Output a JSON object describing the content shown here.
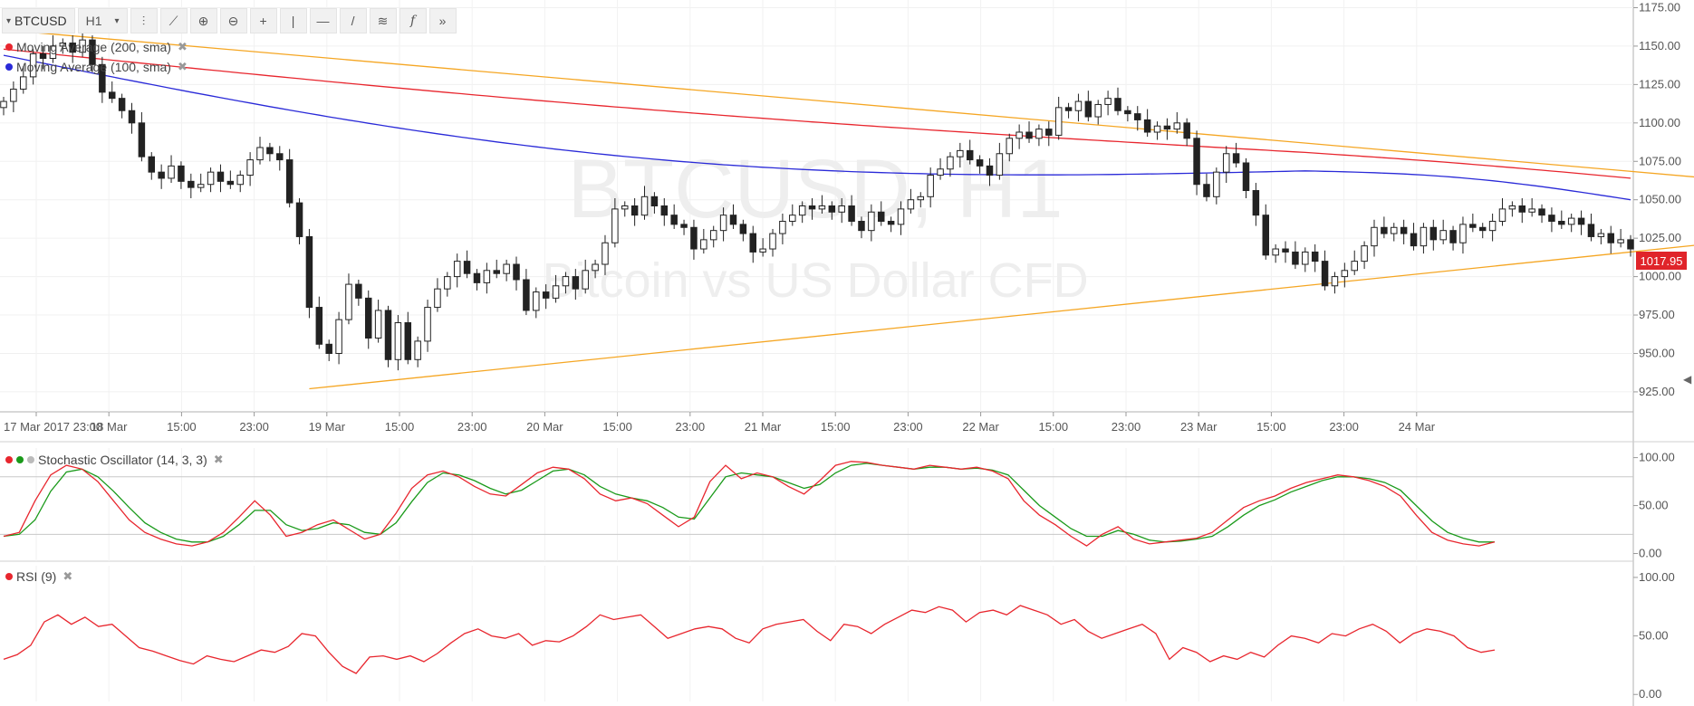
{
  "toolbar": {
    "symbol": "BTCUSD",
    "interval": "H1",
    "icons": [
      "bar-style-icon",
      "indicators-icon",
      "zoom-in-icon",
      "zoom-out-icon",
      "crosshair-icon",
      "vertical-line-icon",
      "horizontal-line-icon",
      "trend-line-icon",
      "fib-tool-icon",
      "function-icon",
      "more-icon"
    ]
  },
  "watermark": {
    "line1": "BTCUSD, H1",
    "line2": "Bitcoin vs US Dollar CFD"
  },
  "colors": {
    "ma200": "#e8262e",
    "ma100": "#2a2ad8",
    "trend": "#f5a623",
    "k": "#e8262e",
    "d": "#1a9a1a",
    "rsi": "#e8262e",
    "badge": "#e0242a"
  },
  "chart_data": [
    {
      "type": "candlestick",
      "ylim": [
        912,
        1180
      ],
      "y_ticks": [
        "1175.00",
        "1150.00",
        "1125.00",
        "1100.00",
        "1075.00",
        "1050.00",
        "1025.00",
        "1000.00",
        "975.00",
        "950.00",
        "925.00"
      ],
      "x_tick_labels": [
        "17 Mar 2017 23:00",
        "18 Mar",
        "15:00",
        "23:00",
        "19 Mar",
        "15:00",
        "23:00",
        "20 Mar",
        "15:00",
        "23:00",
        "21 Mar",
        "15:00",
        "23:00",
        "22 Mar",
        "15:00",
        "23:00",
        "23 Mar",
        "15:00",
        "23:00",
        "24 Mar"
      ],
      "last_price": "1017.95",
      "close": [
        1114,
        1122,
        1130,
        1145,
        1142,
        1150,
        1152,
        1146,
        1154,
        1138,
        1120,
        1116,
        1108,
        1100,
        1078,
        1068,
        1064,
        1072,
        1062,
        1058,
        1060,
        1068,
        1062,
        1060,
        1066,
        1076,
        1084,
        1080,
        1076,
        1048,
        1026,
        980,
        956,
        950,
        972,
        995,
        986,
        960,
        978,
        946,
        970,
        946,
        958,
        980,
        992,
        1000,
        1010,
        1002,
        996,
        1004,
        1002,
        1008,
        998,
        978,
        990,
        986,
        994,
        1000,
        992,
        1004,
        1008,
        1022,
        1044,
        1046,
        1040,
        1052,
        1046,
        1040,
        1034,
        1032,
        1018,
        1024,
        1030,
        1040,
        1034,
        1028,
        1016,
        1018,
        1028,
        1036,
        1040,
        1046,
        1044,
        1046,
        1042,
        1046,
        1036,
        1030,
        1042,
        1036,
        1034,
        1044,
        1050,
        1052,
        1066,
        1070,
        1078,
        1082,
        1076,
        1072,
        1066,
        1080,
        1090,
        1094,
        1090,
        1096,
        1092,
        1110,
        1108,
        1114,
        1104,
        1112,
        1116,
        1108,
        1106,
        1102,
        1094,
        1098,
        1096,
        1100,
        1090,
        1060,
        1052,
        1068,
        1080,
        1074,
        1056,
        1040,
        1014,
        1018,
        1016,
        1008,
        1016,
        1010,
        994,
        1000,
        1004,
        1010,
        1020,
        1032,
        1028,
        1032,
        1028,
        1020,
        1032,
        1024,
        1030,
        1022,
        1034,
        1032,
        1030,
        1036,
        1044,
        1046,
        1042,
        1044,
        1040,
        1036,
        1034,
        1038,
        1034,
        1026,
        1028,
        1022,
        1024,
        1018
      ],
      "ma200": {
        "start": 1148,
        "end": 1064,
        "label": "Moving Average (200, sma)"
      },
      "ma100": {
        "start": 1144,
        "end": 1050,
        "label": "Moving Average (100, sma)"
      },
      "trendlines": [
        {
          "from": [
            1,
            1160
          ],
          "to": [
            179,
            1067
          ]
        },
        {
          "from": [
            31,
            927
          ],
          "to": [
            179,
            1018
          ]
        }
      ]
    },
    {
      "type": "line",
      "label": "Stochastic Oscillator (14, 3, 3)",
      "ylim": [
        -8,
        110
      ],
      "y_ticks": [
        "100.00",
        "50.00",
        "0.00"
      ],
      "levels": [
        80,
        20
      ],
      "k": [
        18,
        22,
        55,
        82,
        92,
        88,
        75,
        55,
        35,
        22,
        15,
        10,
        8,
        12,
        22,
        38,
        55,
        40,
        18,
        22,
        30,
        35,
        25,
        15,
        20,
        42,
        68,
        82,
        86,
        80,
        70,
        62,
        60,
        72,
        84,
        90,
        88,
        78,
        62,
        55,
        58,
        52,
        40,
        28,
        38,
        75,
        92,
        78,
        84,
        80,
        70,
        62,
        76,
        92,
        96,
        95,
        92,
        90,
        88,
        92,
        90,
        88,
        90,
        86,
        78,
        55,
        40,
        30,
        18,
        8,
        20,
        28,
        15,
        10,
        12,
        14,
        16,
        22,
        35,
        48,
        55,
        60,
        68,
        74,
        78,
        82,
        80,
        76,
        70,
        60,
        40,
        22,
        14,
        10,
        8,
        12
      ],
      "d": [
        18,
        20,
        35,
        65,
        85,
        88,
        80,
        65,
        48,
        32,
        22,
        15,
        12,
        12,
        18,
        30,
        45,
        45,
        30,
        24,
        26,
        32,
        30,
        22,
        20,
        32,
        54,
        74,
        84,
        82,
        76,
        68,
        62,
        66,
        76,
        86,
        88,
        82,
        70,
        62,
        58,
        55,
        48,
        38,
        36,
        58,
        80,
        84,
        82,
        80,
        74,
        68,
        72,
        84,
        92,
        94,
        92,
        90,
        88,
        90,
        90,
        88,
        89,
        87,
        82,
        66,
        50,
        38,
        26,
        18,
        18,
        24,
        20,
        14,
        12,
        13,
        15,
        18,
        28,
        40,
        50,
        56,
        64,
        70,
        76,
        80,
        80,
        78,
        74,
        66,
        50,
        34,
        22,
        16,
        12,
        12
      ]
    },
    {
      "type": "line",
      "label": "RSI (9)",
      "ylim": [
        -6,
        110
      ],
      "y_ticks": [
        "100.00",
        "50.00",
        "0.00"
      ],
      "values": [
        30,
        34,
        42,
        62,
        68,
        60,
        66,
        58,
        60,
        50,
        40,
        37,
        33,
        29,
        26,
        33,
        30,
        28,
        33,
        38,
        36,
        41,
        52,
        50,
        36,
        24,
        18,
        32,
        33,
        30,
        33,
        28,
        35,
        44,
        52,
        56,
        50,
        48,
        52,
        42,
        46,
        45,
        50,
        58,
        68,
        64,
        66,
        68,
        58,
        48,
        52,
        56,
        58,
        56,
        48,
        44,
        56,
        60,
        62,
        64,
        54,
        46,
        60,
        58,
        52,
        60,
        66,
        72,
        70,
        75,
        72,
        62,
        70,
        72,
        68,
        76,
        72,
        68,
        60,
        64,
        54,
        48,
        52,
        56,
        60,
        52,
        30,
        40,
        36,
        28,
        33,
        30,
        36,
        32,
        42,
        50,
        48,
        44,
        52,
        50,
        56,
        60,
        54,
        44,
        52,
        56,
        54,
        50,
        40,
        36,
        38
      ]
    }
  ]
}
